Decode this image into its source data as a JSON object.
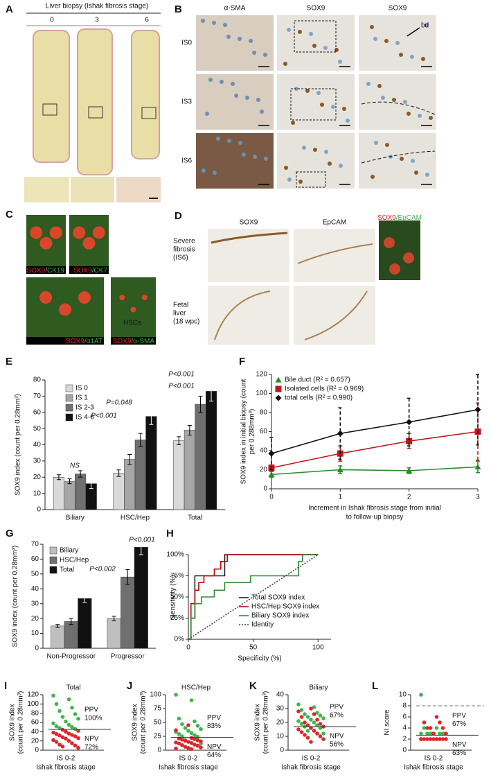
{
  "figure": {
    "panel_a": {
      "label": "A",
      "title": "Liver biopsy (Ishak fibrosis stage)",
      "columns": [
        "0",
        "3",
        "6"
      ]
    },
    "panel_b": {
      "label": "B",
      "columns": [
        "α-SMA",
        "SOX9",
        "SOX9"
      ],
      "rows": [
        "IS0",
        "IS3",
        "IS6"
      ],
      "annotation": "bd"
    },
    "panel_c": {
      "label": "C",
      "captions": [
        [
          "SOX9",
          "/CK19"
        ],
        [
          "SOX9",
          "/CK7"
        ],
        [
          "SOX9",
          "/α1AT"
        ],
        [
          "SOX9",
          "/α-SMA"
        ]
      ],
      "annotation": "HSCs"
    },
    "panel_d": {
      "label": "D",
      "columns": [
        "SOX9",
        "EpCAM"
      ],
      "merge_caption": [
        "SOX9",
        "/EpCAM"
      ],
      "rows": [
        [
          "Severe",
          "fibrosis",
          "(IS6)"
        ],
        [
          "Fetal",
          "liver",
          "(18 wpc)"
        ]
      ]
    }
  },
  "chart_data": [
    {
      "type": "bar",
      "label": "E",
      "ylabel": [
        "SOX9 index (count per 0.28mm³)"
      ],
      "categories": [
        "Biliary",
        "HSC/Hep",
        "Total"
      ],
      "series": [
        {
          "name": "IS 0",
          "color": "#d9d9d9",
          "values": [
            20,
            22.5,
            42.5
          ],
          "errors": [
            1.5,
            2,
            2.5
          ]
        },
        {
          "name": "IS 1",
          "color": "#a6a6a6",
          "values": [
            17.5,
            31,
            49
          ],
          "errors": [
            1.5,
            3,
            3
          ]
        },
        {
          "name": "IS 2-3",
          "color": "#6f6f6f",
          "values": [
            22,
            43,
            65
          ],
          "errors": [
            2,
            4,
            5
          ]
        },
        {
          "name": "IS 4-6",
          "color": "#111111",
          "values": [
            16,
            57.5,
            73
          ],
          "errors": [
            3,
            5,
            6
          ]
        }
      ],
      "ylim": [
        0,
        80
      ],
      "yticks": [
        0,
        10,
        20,
        30,
        40,
        50,
        60,
        70,
        80
      ],
      "annotations": [
        "NS",
        "P=0.048",
        "P<0.001",
        "P<0.001",
        "P<0.001"
      ]
    },
    {
      "type": "line",
      "label": "F",
      "ylabel": [
        "SOX9 index in initial biopsy (count",
        "per 0.288mm³)"
      ],
      "xlabel": [
        "Increment in Ishak fibrosis stage from initial",
        "to follow-up biopsy"
      ],
      "x": [
        0,
        1,
        2,
        3
      ],
      "xlim": [
        0,
        3
      ],
      "xticks": [
        0,
        1,
        2,
        3
      ],
      "series": [
        {
          "name": "Bile duct (R² = 0.657)",
          "color": "#2a8a2a",
          "marker": "triangle",
          "values": [
            15,
            20,
            19,
            23
          ],
          "errors": [
            3,
            4,
            3,
            6
          ]
        },
        {
          "name": "Isolated cells (R² = 0.969)",
          "color": "#c0161b",
          "marker": "square",
          "values": [
            22,
            37,
            50,
            60
          ],
          "errors": [
            3,
            8,
            8,
            30
          ]
        },
        {
          "name": "total cells  (R² = 0.990)",
          "color": "#111111",
          "marker": "diamond",
          "values": [
            37,
            58,
            70,
            83
          ],
          "errors": [
            17,
            27,
            25,
            37
          ],
          "error_dash": true
        }
      ],
      "ylim": [
        0,
        120
      ],
      "yticks": [
        0,
        20,
        40,
        60,
        80,
        100,
        120
      ]
    },
    {
      "type": "bar",
      "label": "G",
      "ylabel": [
        "SOX9 index (count per 0.28mm³)"
      ],
      "categories": [
        "Non-Progressor",
        "Progressor"
      ],
      "series": [
        {
          "name": "Biliary",
          "color": "#bfbfbf",
          "values": [
            15,
            20
          ],
          "errors": [
            1,
            1.5
          ]
        },
        {
          "name": "HSC/Hep",
          "color": "#6f6f6f",
          "values": [
            18,
            48
          ],
          "errors": [
            2,
            5
          ]
        },
        {
          "name": "Total",
          "color": "#111111",
          "values": [
            33.5,
            68
          ],
          "errors": [
            2.5,
            5
          ]
        }
      ],
      "ylim": [
        0,
        70
      ],
      "yticks": [
        0,
        10,
        20,
        30,
        40,
        50,
        60,
        70
      ],
      "annotations": [
        "P<0.002",
        "P<0.001"
      ]
    },
    {
      "type": "line",
      "label": "H",
      "ylabel": [
        "Sensitivity (%)"
      ],
      "xlabel": [
        "Specificity (%)"
      ],
      "xlim": [
        0,
        110
      ],
      "xticks": [
        0,
        50,
        100
      ],
      "series": [
        {
          "name": "Total SOX9 index",
          "color": "#222222",
          "x": [
            0,
            2,
            2,
            5,
            5,
            28,
            28,
            100
          ],
          "values": [
            0,
            0,
            25,
            25,
            75,
            75,
            100,
            100
          ]
        },
        {
          "name": "HSC/Hep SOX9 index",
          "color": "#c00000",
          "x": [
            0,
            2,
            2,
            5,
            5,
            8,
            8,
            12,
            12,
            20,
            20,
            25,
            25,
            30,
            30,
            100
          ],
          "values": [
            0,
            0,
            42,
            42,
            58,
            58,
            67,
            67,
            75,
            75,
            83,
            83,
            92,
            92,
            100,
            100
          ]
        },
        {
          "name": "Biliary SOX9 index",
          "color": "#2e8b2e",
          "x": [
            0,
            2,
            2,
            5,
            5,
            10,
            10,
            20,
            20,
            28,
            28,
            48,
            48,
            85,
            85,
            88,
            88,
            100
          ],
          "values": [
            0,
            0,
            25,
            25,
            42,
            42,
            50,
            50,
            58,
            58,
            67,
            67,
            75,
            75,
            92,
            92,
            100,
            100
          ]
        },
        {
          "name": "Identity",
          "color": "#444444",
          "dash": true,
          "x": [
            0,
            100
          ],
          "values": [
            0,
            100
          ]
        }
      ],
      "ylim": [
        0,
        100
      ],
      "yticks": [
        {
          "value": 0,
          "label": "0%"
        },
        {
          "value": 25,
          "label": "25%"
        },
        {
          "value": 50,
          "label": "50%"
        },
        {
          "value": 75,
          "label": "75%"
        },
        {
          "value": 100,
          "label": "100%"
        }
      ]
    },
    {
      "type": "strip",
      "label": "I",
      "title": "Total",
      "ylabel": [
        "SOX9 index",
        "(count per 0.28mm³)"
      ],
      "xlabel": [
        "Ishak fibrosis stage"
      ],
      "categories": [
        "IS 0-2"
      ],
      "ylim": [
        0,
        120
      ],
      "yticks": [
        0,
        20,
        40,
        60,
        80,
        100,
        120
      ],
      "threshold": 45,
      "series": [
        {
          "color": "#3cb84a",
          "values": [
            118,
            110,
            100,
            92,
            85,
            78,
            72,
            68,
            62,
            58,
            55,
            52,
            50,
            48,
            46
          ]
        },
        {
          "color": "#e0262a",
          "values": [
            44,
            42,
            40,
            38,
            36,
            35,
            33,
            32,
            30,
            28,
            26,
            25,
            22,
            20,
            18,
            15,
            12,
            10,
            8,
            5
          ]
        }
      ],
      "ppv": [
        "PPV",
        "100%"
      ],
      "npv": [
        "NPV",
        "72%"
      ]
    },
    {
      "type": "strip",
      "label": "J",
      "title": "HSC/Hep",
      "ylabel": [
        "SOX9 index",
        "(count per 0.28mm³)"
      ],
      "xlabel": [
        "Ishak fibrosis stage"
      ],
      "categories": [
        "IS 0-2"
      ],
      "ylim": [
        0,
        100
      ],
      "yticks": [
        0,
        25,
        50,
        75,
        100
      ],
      "threshold": 23,
      "series": [
        {
          "color": "#3cb84a",
          "values": [
            100,
            90,
            57,
            52,
            47,
            44,
            40,
            38,
            35,
            33,
            31,
            29,
            27,
            25,
            24,
            18,
            12
          ]
        },
        {
          "color": "#e0262a",
          "values": [
            45,
            36,
            22,
            21,
            20,
            19,
            18,
            17,
            16,
            15,
            14,
            13,
            12,
            10,
            9,
            8,
            6,
            5,
            4,
            3,
            2
          ]
        }
      ],
      "ppv": [
        "PPV",
        "83%"
      ],
      "npv": [
        "NPV",
        "64%"
      ]
    },
    {
      "type": "strip",
      "label": "K",
      "title": "Biliary",
      "ylabel": [
        "SOX9 index",
        "(count per 0.28mm³)"
      ],
      "xlabel": [
        "Ishak fibrosis stage"
      ],
      "categories": [
        "IS 0-2"
      ],
      "ylim": [
        0,
        40
      ],
      "yticks": [
        0,
        10,
        20,
        30,
        40
      ],
      "threshold": 17,
      "series": [
        {
          "color": "#3cb84a",
          "values": [
            33,
            31,
            29,
            27,
            26,
            25,
            24,
            23,
            22,
            21,
            20,
            19,
            18,
            17,
            16,
            14,
            12
          ]
        },
        {
          "color": "#e0262a",
          "values": [
            30,
            28,
            26,
            24,
            22,
            20,
            19,
            18,
            17,
            16,
            15,
            14,
            13,
            12,
            11,
            10,
            9,
            8,
            6
          ]
        }
      ],
      "ppv": [
        "PPV",
        "67%"
      ],
      "npv": [
        "NPV",
        "56%"
      ]
    },
    {
      "type": "strip",
      "label": "L",
      "ylabel": [
        "NI score"
      ],
      "xlabel": [
        "Ishak fibrosis stage"
      ],
      "categories": [
        "IS 0-2"
      ],
      "ylim": [
        0,
        10
      ],
      "yticks": [
        0,
        2,
        4,
        6,
        8,
        10
      ],
      "threshold": 2.7,
      "reference_line": 8,
      "series": [
        {
          "color": "#3cb84a",
          "values": [
            10,
            4,
            4,
            3,
            3,
            3,
            3,
            3,
            3,
            3
          ]
        },
        {
          "color": "#e0262a",
          "values": [
            6,
            5,
            5,
            4,
            4,
            4,
            3,
            3,
            2,
            2,
            2,
            2,
            2,
            2,
            2,
            2,
            2,
            2,
            2
          ]
        }
      ],
      "ppv": [
        "PPV",
        "67%"
      ],
      "npv": [
        "NPV",
        "63%"
      ]
    }
  ]
}
